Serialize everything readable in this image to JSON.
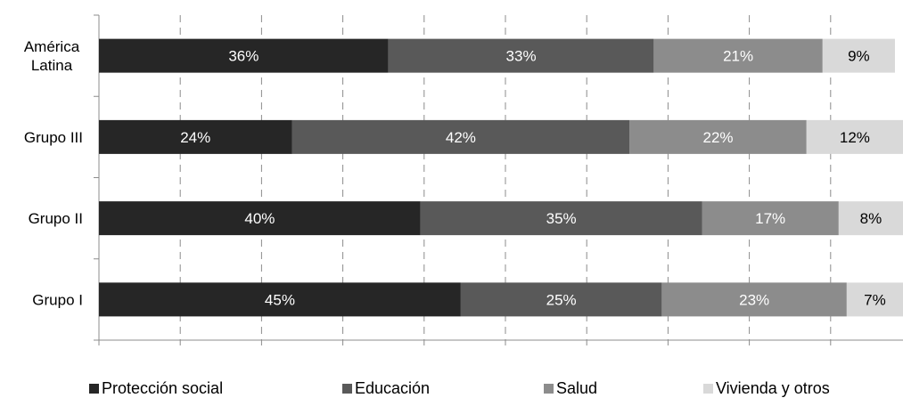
{
  "chart_data": {
    "type": "bar",
    "orientation": "horizontal",
    "stacked": true,
    "percent": true,
    "categories": [
      "América Latina",
      "Grupo III",
      "Grupo II",
      "Grupo I"
    ],
    "category_label_lines": [
      [
        "América",
        "Latina"
      ],
      [
        "Grupo III"
      ],
      [
        "Grupo II"
      ],
      [
        "Grupo I"
      ]
    ],
    "series": [
      {
        "name": "Protección social",
        "values": [
          36,
          24,
          40,
          45
        ],
        "labels": [
          "36%",
          "24%",
          "40%",
          "45%"
        ],
        "color": "#262626",
        "label_color": "#ffffff"
      },
      {
        "name": "Educación",
        "values": [
          33,
          42,
          35,
          25
        ],
        "labels": [
          "33%",
          "42%",
          "35%",
          "25%"
        ],
        "color": "#595959",
        "label_color": "#ffffff"
      },
      {
        "name": "Salud",
        "values": [
          21,
          22,
          17,
          23
        ],
        "labels": [
          "21%",
          "22%",
          "17%",
          "23%"
        ],
        "color": "#8c8c8c",
        "label_color": "#ffffff"
      },
      {
        "name": "Vivienda y otros",
        "values": [
          9,
          12,
          8,
          7
        ],
        "labels": [
          "9%",
          "12%",
          "8%",
          "7%"
        ],
        "color": "#d9d9d9",
        "label_color": "#000000"
      }
    ],
    "xlim": [
      0,
      100
    ],
    "grid": "vertical-dashed",
    "legend_position": "bottom"
  },
  "legend": {
    "items": [
      "Protección social",
      "Educación",
      "Salud",
      "Vivienda y otros"
    ]
  }
}
